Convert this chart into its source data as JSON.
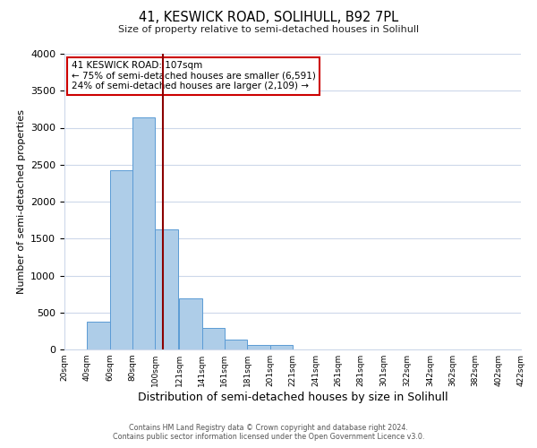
{
  "title": "41, KESWICK ROAD, SOLIHULL, B92 7PL",
  "subtitle": "Size of property relative to semi-detached houses in Solihull",
  "xlabel": "Distribution of semi-detached houses by size in Solihull",
  "ylabel": "Number of semi-detached properties",
  "bar_values": [
    5,
    375,
    2420,
    3140,
    1630,
    690,
    295,
    130,
    60,
    55,
    0,
    0,
    0,
    0,
    0,
    0,
    0,
    0,
    0,
    0
  ],
  "bin_starts": [
    20,
    40,
    60,
    80,
    100,
    121,
    141,
    161,
    181,
    201,
    221,
    241,
    261,
    281,
    301,
    322,
    342,
    362,
    382,
    402
  ],
  "bin_width": 20,
  "bin_labels": [
    "20sqm",
    "40sqm",
    "60sqm",
    "80sqm",
    "100sqm",
    "121sqm",
    "141sqm",
    "161sqm",
    "181sqm",
    "201sqm",
    "221sqm",
    "241sqm",
    "261sqm",
    "281sqm",
    "301sqm",
    "322sqm",
    "342sqm",
    "362sqm",
    "382sqm",
    "402sqm",
    "422sqm"
  ],
  "xtick_positions": [
    20,
    40,
    60,
    80,
    100,
    121,
    141,
    161,
    181,
    201,
    221,
    241,
    261,
    281,
    301,
    322,
    342,
    362,
    382,
    402,
    422
  ],
  "xlim": [
    20,
    422
  ],
  "bar_color": "#aecde8",
  "bar_edge_color": "#5b9bd5",
  "property_size": 107,
  "vline_color": "#8b0000",
  "annotation_title": "41 KESWICK ROAD: 107sqm",
  "annotation_line1": "← 75% of semi-detached houses are smaller (6,591)",
  "annotation_line2": "24% of semi-detached houses are larger (2,109) →",
  "annotation_box_color": "#ffffff",
  "annotation_box_edge": "#cc0000",
  "ylim": [
    0,
    4000
  ],
  "yticks": [
    0,
    500,
    1000,
    1500,
    2000,
    2500,
    3000,
    3500,
    4000
  ],
  "footer_line1": "Contains HM Land Registry data © Crown copyright and database right 2024.",
  "footer_line2": "Contains public sector information licensed under the Open Government Licence v3.0.",
  "background_color": "#ffffff",
  "grid_color": "#cdd8ea"
}
